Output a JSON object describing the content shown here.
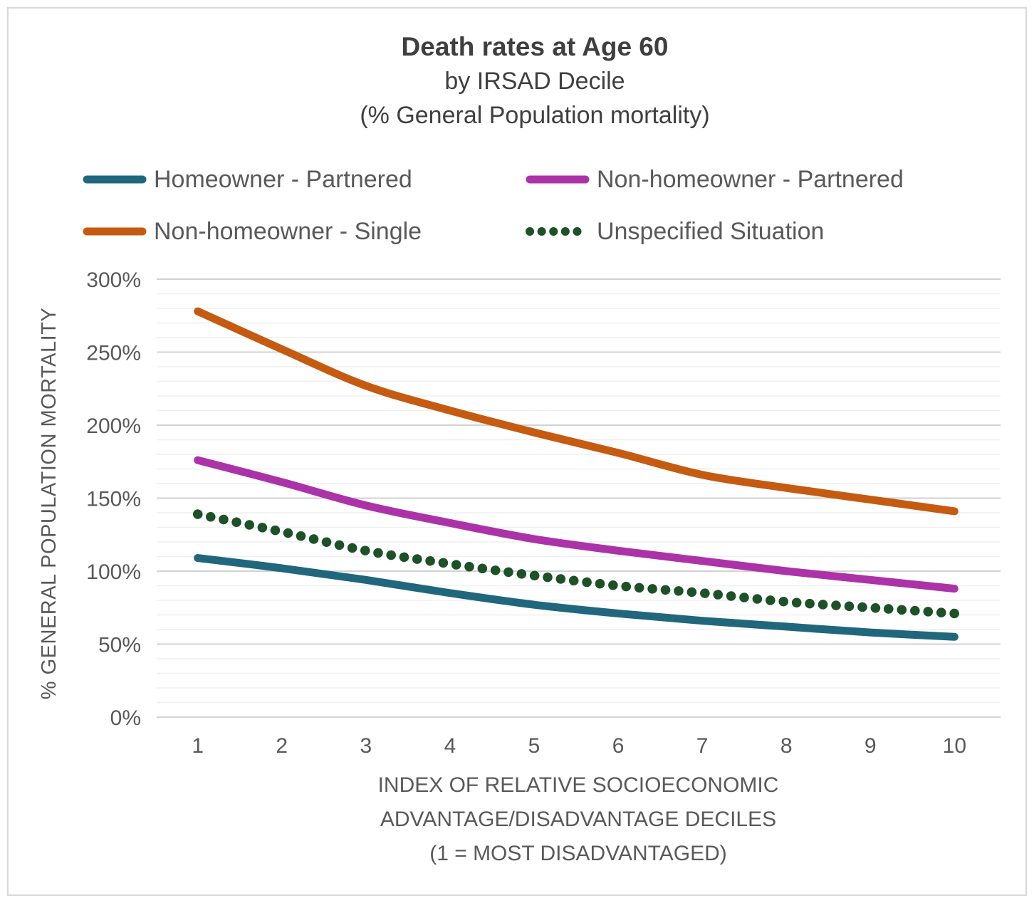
{
  "frame": {
    "border_color": "#D9D9D9"
  },
  "title": {
    "line1": "Death rates at Age 60",
    "line2": "by IRSAD Decile",
    "line3": "(% General Population mortality)"
  },
  "legend": {
    "items": [
      {
        "label": "Homeowner - Partnered",
        "color": "#20677D",
        "style": "solid"
      },
      {
        "label": "Non-homeowner - Partnered",
        "color": "#AC33A7",
        "style": "solid"
      },
      {
        "label": "Non-homeowner - Single",
        "color": "#C55A11",
        "style": "solid"
      },
      {
        "label": "Unspecified Situation",
        "color": "#1D5128",
        "style": "dotted"
      }
    ]
  },
  "chart_data": {
    "type": "line",
    "title": "Death rates at Age 60 by IRSAD Decile (% General Population mortality)",
    "categories": [
      1,
      2,
      3,
      4,
      5,
      6,
      7,
      8,
      9,
      10
    ],
    "series": [
      {
        "name": "Homeowner - Partnered",
        "color": "#20677D",
        "line_style": "solid",
        "values": [
          109,
          102,
          94,
          85,
          77,
          71,
          66,
          62,
          58,
          55
        ]
      },
      {
        "name": "Non-homeowner - Partnered",
        "color": "#AC33A7",
        "line_style": "solid",
        "values": [
          176,
          161,
          145,
          133,
          122,
          114,
          107,
          100,
          94,
          88
        ]
      },
      {
        "name": "Non-homeowner - Single",
        "color": "#C55A11",
        "line_style": "solid",
        "values": [
          278,
          252,
          227,
          210,
          195,
          181,
          166,
          157,
          149,
          141
        ]
      },
      {
        "name": "Unspecified Situation",
        "color": "#1D5128",
        "line_style": "dotted",
        "values": [
          139,
          127,
          114,
          105,
          97,
          90,
          85,
          79,
          75,
          71
        ]
      }
    ],
    "xlabel_lines": [
      "INDEX OF RELATIVE SOCIOECONOMIC",
      "ADVANTAGE/DISADVANTAGE DECILES",
      "(1 = MOST DISADVANTAGED)"
    ],
    "ylabel": "% GENERAL POPULATION MORTALITY",
    "ylim": [
      0,
      300
    ],
    "y_major_step": 50,
    "y_minor_step": 10,
    "y_tick_labels": [
      "0%",
      "50%",
      "100%",
      "150%",
      "200%",
      "250%",
      "300%"
    ],
    "grid": "horizontal",
    "legend_position": "top",
    "text_color": "#595959",
    "title_color": "#3F3F3F",
    "major_grid_color": "#D2D2D2",
    "minor_grid_color": "#EFEFEF"
  }
}
